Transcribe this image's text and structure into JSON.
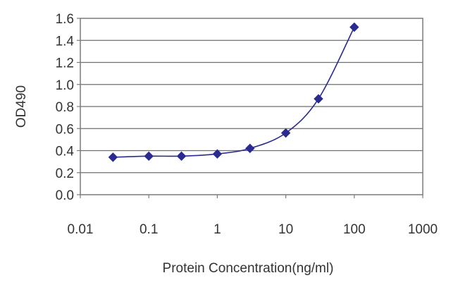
{
  "chart_data": {
    "type": "scatter",
    "title": "",
    "xlabel": "Protein Concentration(ng/ml)",
    "ylabel": "OD490",
    "x_scale": "log",
    "xlim": [
      0.01,
      1000
    ],
    "ylim": [
      0.0,
      1.6
    ],
    "x_tick_labels": [
      "0.01",
      "0.1",
      "1",
      "10",
      "100",
      "1000"
    ],
    "y_tick_labels": [
      "0.0",
      "0.2",
      "0.4",
      "0.6",
      "0.8",
      "1.0",
      "1.2",
      "1.4",
      "1.6"
    ],
    "grid": "horizontal",
    "legend": "none",
    "series": [
      {
        "x": [
          0.03,
          0.1,
          0.3,
          1,
          3,
          10,
          30,
          100
        ],
        "y": [
          0.34,
          0.35,
          0.35,
          0.37,
          0.42,
          0.56,
          0.87,
          1.52
        ],
        "marker": "diamond",
        "fitted_curve": true,
        "color": "#2b2b8f"
      }
    ],
    "colors": {
      "plot_background": "#ffffff",
      "gridline": "#6f6f6f",
      "frame": "#7a7a7a",
      "series": "#2b2b8f"
    }
  }
}
